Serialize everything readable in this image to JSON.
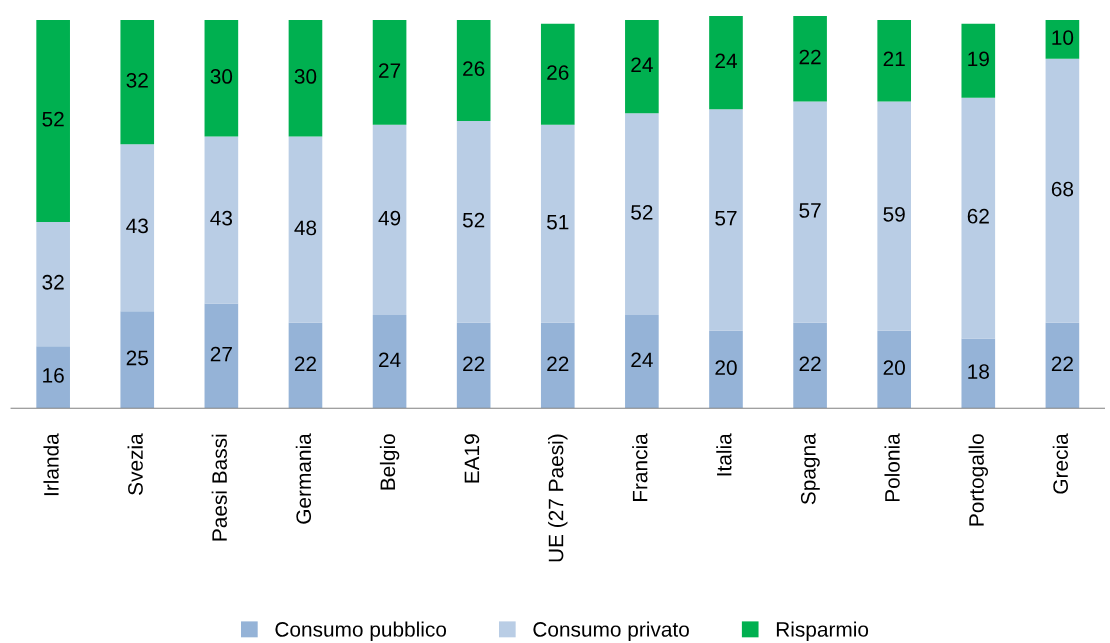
{
  "chart_data": {
    "type": "bar",
    "stacked": true,
    "data_labels": true,
    "legend": "bottom",
    "tick_labels": "x",
    "grid": false,
    "categories": [
      "Irlanda",
      "Svezia",
      "Paesi Bassi",
      "Germania",
      "Belgio",
      "EA19",
      "UE (27 Paesi)",
      "Francia",
      "Italia",
      "Spagna",
      "Polonia",
      "Portogallo",
      "Grecia"
    ],
    "series": [
      {
        "name": "Consumo pubblico",
        "color": "#95b3d7",
        "values": [
          16,
          25,
          27,
          22,
          24,
          22,
          22,
          24,
          20,
          22,
          20,
          18,
          22
        ]
      },
      {
        "name": "Consumo privato",
        "color": "#b9cde5",
        "values": [
          32,
          43,
          43,
          48,
          49,
          52,
          51,
          52,
          57,
          57,
          59,
          62,
          68
        ]
      },
      {
        "name": "Risparmio",
        "color": "#00b050",
        "values": [
          52,
          32,
          30,
          30,
          27,
          26,
          26,
          24,
          24,
          22,
          21,
          19,
          10
        ]
      }
    ]
  }
}
